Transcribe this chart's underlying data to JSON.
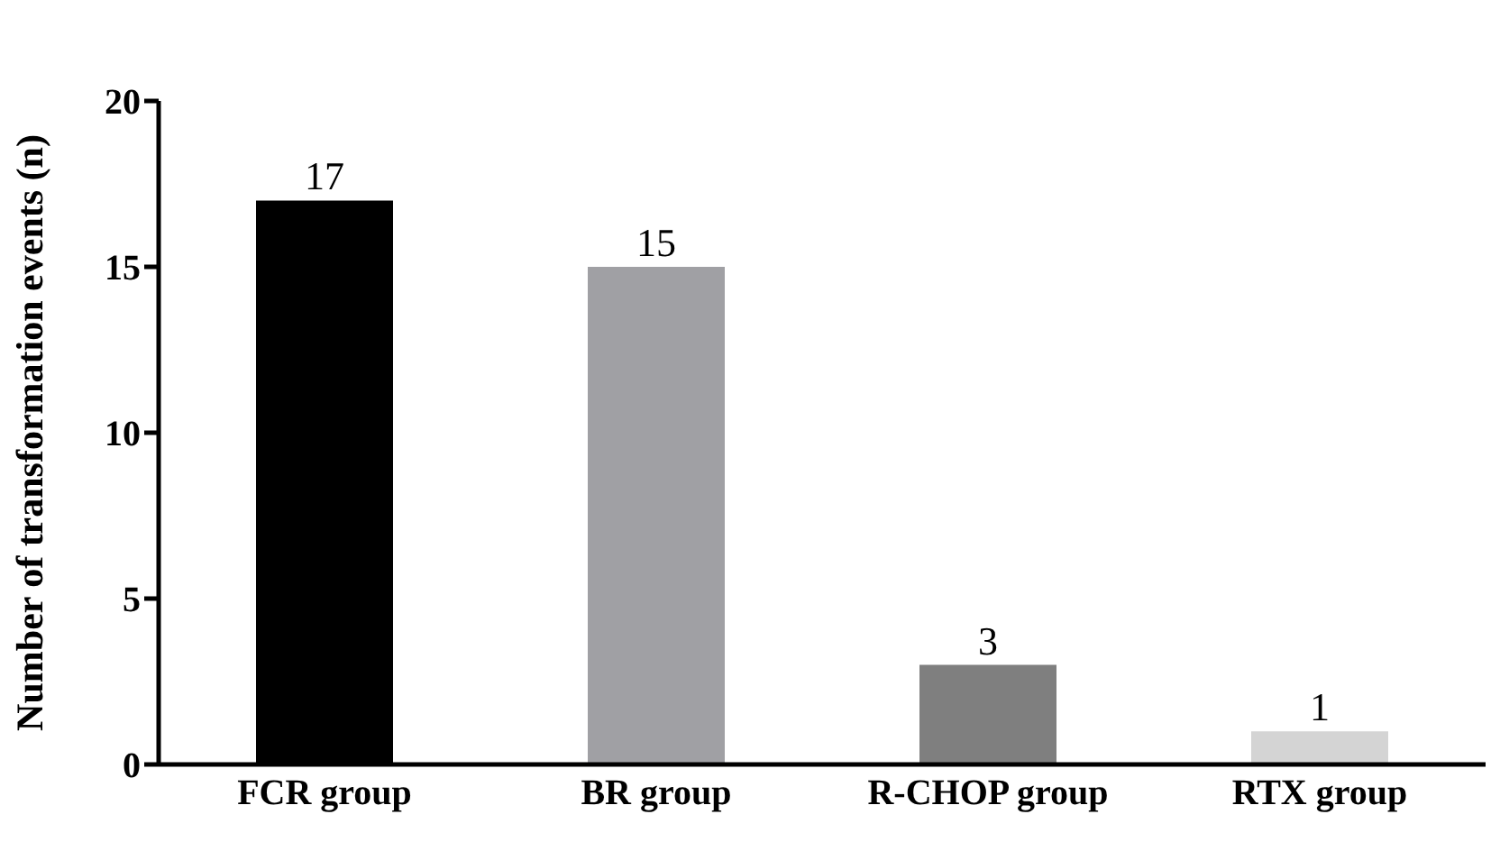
{
  "chart_data": {
    "type": "bar",
    "categories": [
      "FCR group",
      "BR group",
      "R-CHOP group",
      "RTX group"
    ],
    "values": [
      17,
      15,
      3,
      1
    ],
    "colors": [
      "#000000",
      "#a0a0a4",
      "#7f7f7f",
      "#d4d4d4"
    ],
    "ylabel": "Number of transformation events (n)",
    "ylim": [
      0,
      20
    ],
    "yticks": [
      0,
      5,
      10,
      15,
      20
    ],
    "data_labels": true,
    "grid": false,
    "legend": false
  }
}
